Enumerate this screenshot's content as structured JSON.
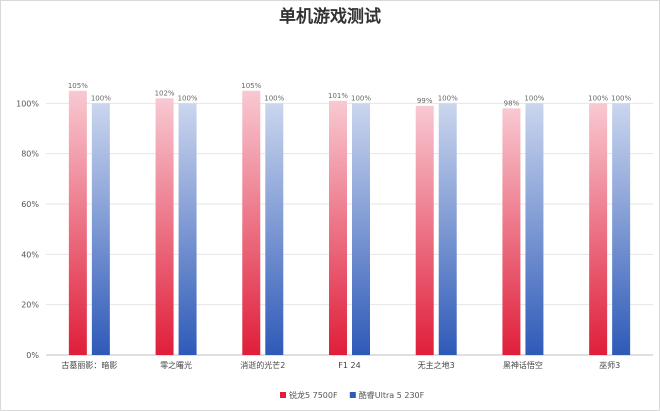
{
  "chart_data": {
    "type": "bar",
    "title": "单机游戏测试",
    "xlabel": "",
    "ylabel": "",
    "categories": [
      "古墓丽影：暗影",
      "零之曙光",
      "消逝的光芒2",
      "F1 24",
      "无主之地3",
      "黑神话悟空",
      "巫师3"
    ],
    "series": [
      {
        "name": "锐龙5 7500F",
        "values": [
          105,
          102,
          105,
          101,
          99,
          98,
          100
        ],
        "labels": [
          "105%",
          "102%",
          "105%",
          "101%",
          "99%",
          "98%",
          "100%"
        ],
        "color_top": "#f8c9d2",
        "color_bottom": "#e01e3a"
      },
      {
        "name": "酷睿Ultra 5 230F",
        "values": [
          100,
          100,
          100,
          100,
          100,
          100,
          100
        ],
        "labels": [
          "100%",
          "100%",
          "100%",
          "100%",
          "100%",
          "100%",
          "100%"
        ],
        "color_top": "#cbd6ee",
        "color_bottom": "#2e5ab8"
      }
    ],
    "yticks": [
      "0%",
      "20%",
      "40%",
      "60%",
      "80%",
      "100%"
    ],
    "ylim": [
      0,
      120
    ],
    "grid": true,
    "legend_position": "bottom-center"
  }
}
